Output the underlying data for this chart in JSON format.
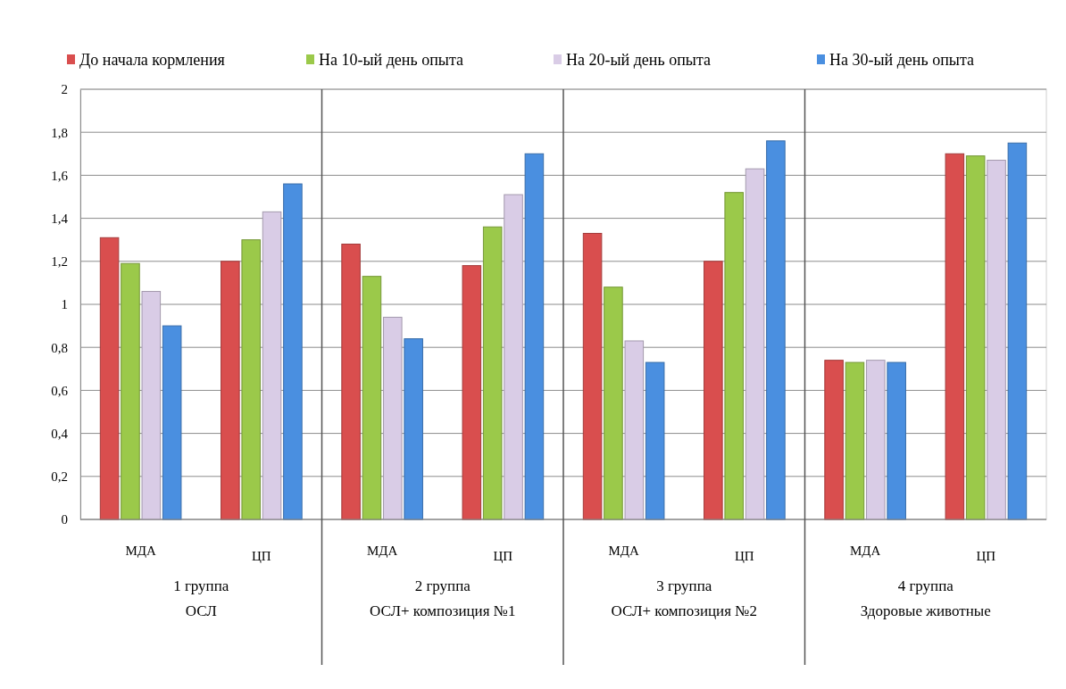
{
  "chart_data": {
    "type": "bar",
    "categories": [
      "МДА",
      "ЦП",
      "МДА",
      "ЦП",
      "МДА",
      "ЦП",
      "МДА",
      "ЦП"
    ],
    "series": [
      {
        "name": "До начала кормления",
        "color": "#d94e4e",
        "values": [
          1.31,
          1.2,
          1.28,
          1.18,
          1.33,
          1.2,
          0.74,
          1.7
        ]
      },
      {
        "name": "На 10-ый день опыта",
        "color": "#9bc94a",
        "values": [
          1.19,
          1.3,
          1.13,
          1.36,
          1.08,
          1.52,
          0.73,
          1.69
        ]
      },
      {
        "name": "На 20-ый день опыта",
        "color": "#d9cce6",
        "values": [
          1.06,
          1.43,
          0.94,
          1.51,
          0.83,
          1.63,
          0.74,
          1.67
        ]
      },
      {
        "name": "На 30-ый день опыта",
        "color": "#4a8fe0",
        "values": [
          0.9,
          1.56,
          0.84,
          1.7,
          0.73,
          1.76,
          0.73,
          1.75
        ]
      }
    ],
    "ylim": [
      0,
      2
    ],
    "yticks": [
      0,
      {
        "value": 0.2,
        "label": "0,2"
      },
      {
        "value": 0.4,
        "label": "0,4"
      },
      {
        "value": 0.6,
        "label": "0,6"
      },
      {
        "value": 0.8,
        "label": "0,8"
      },
      1,
      {
        "value": 1.2,
        "label": "1,2"
      },
      {
        "value": 1.4,
        "label": "1,4"
      },
      {
        "value": 1.6,
        "label": "1,6"
      },
      {
        "value": 1.8,
        "label": "1,8"
      },
      2
    ],
    "grid": "y",
    "legend": "top",
    "annotations": [
      "1 группа\nОСЛ",
      "2 группа\nОСЛ+ композиция №1",
      "3 группа\nОСЛ+ композиция №2",
      "4  группа\nЗдоровые  животные"
    ]
  }
}
